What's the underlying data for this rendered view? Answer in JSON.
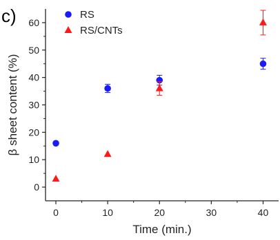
{
  "panel_label": "c)",
  "chart_data": {
    "type": "scatter",
    "xlabel": "Time (min.)",
    "ylabel": "β sheet content (%)",
    "xlim": [
      -2,
      43
    ],
    "ylim": [
      -5,
      65
    ],
    "xticks": [
      0,
      10,
      20,
      30,
      40
    ],
    "yticks": [
      0,
      10,
      20,
      30,
      40,
      50,
      60
    ],
    "legend_position": "top-left",
    "grid": false,
    "series": [
      {
        "name": "RS",
        "marker": "circle",
        "color": "#1a1aff",
        "points": [
          {
            "x": 0,
            "y": 16,
            "err": 0
          },
          {
            "x": 10,
            "y": 36,
            "err": 1.5
          },
          {
            "x": 20,
            "y": 39,
            "err": 1.8
          },
          {
            "x": 40,
            "y": 45,
            "err": 2
          }
        ]
      },
      {
        "name": "RS/CNTs",
        "marker": "triangle",
        "color": "#ff1a1a",
        "points": [
          {
            "x": 0,
            "y": 3,
            "err": 0
          },
          {
            "x": 10,
            "y": 12,
            "err": 0
          },
          {
            "x": 20,
            "y": 36,
            "err": 2.5
          },
          {
            "x": 40,
            "y": 60,
            "err": 4.5
          }
        ]
      }
    ]
  }
}
